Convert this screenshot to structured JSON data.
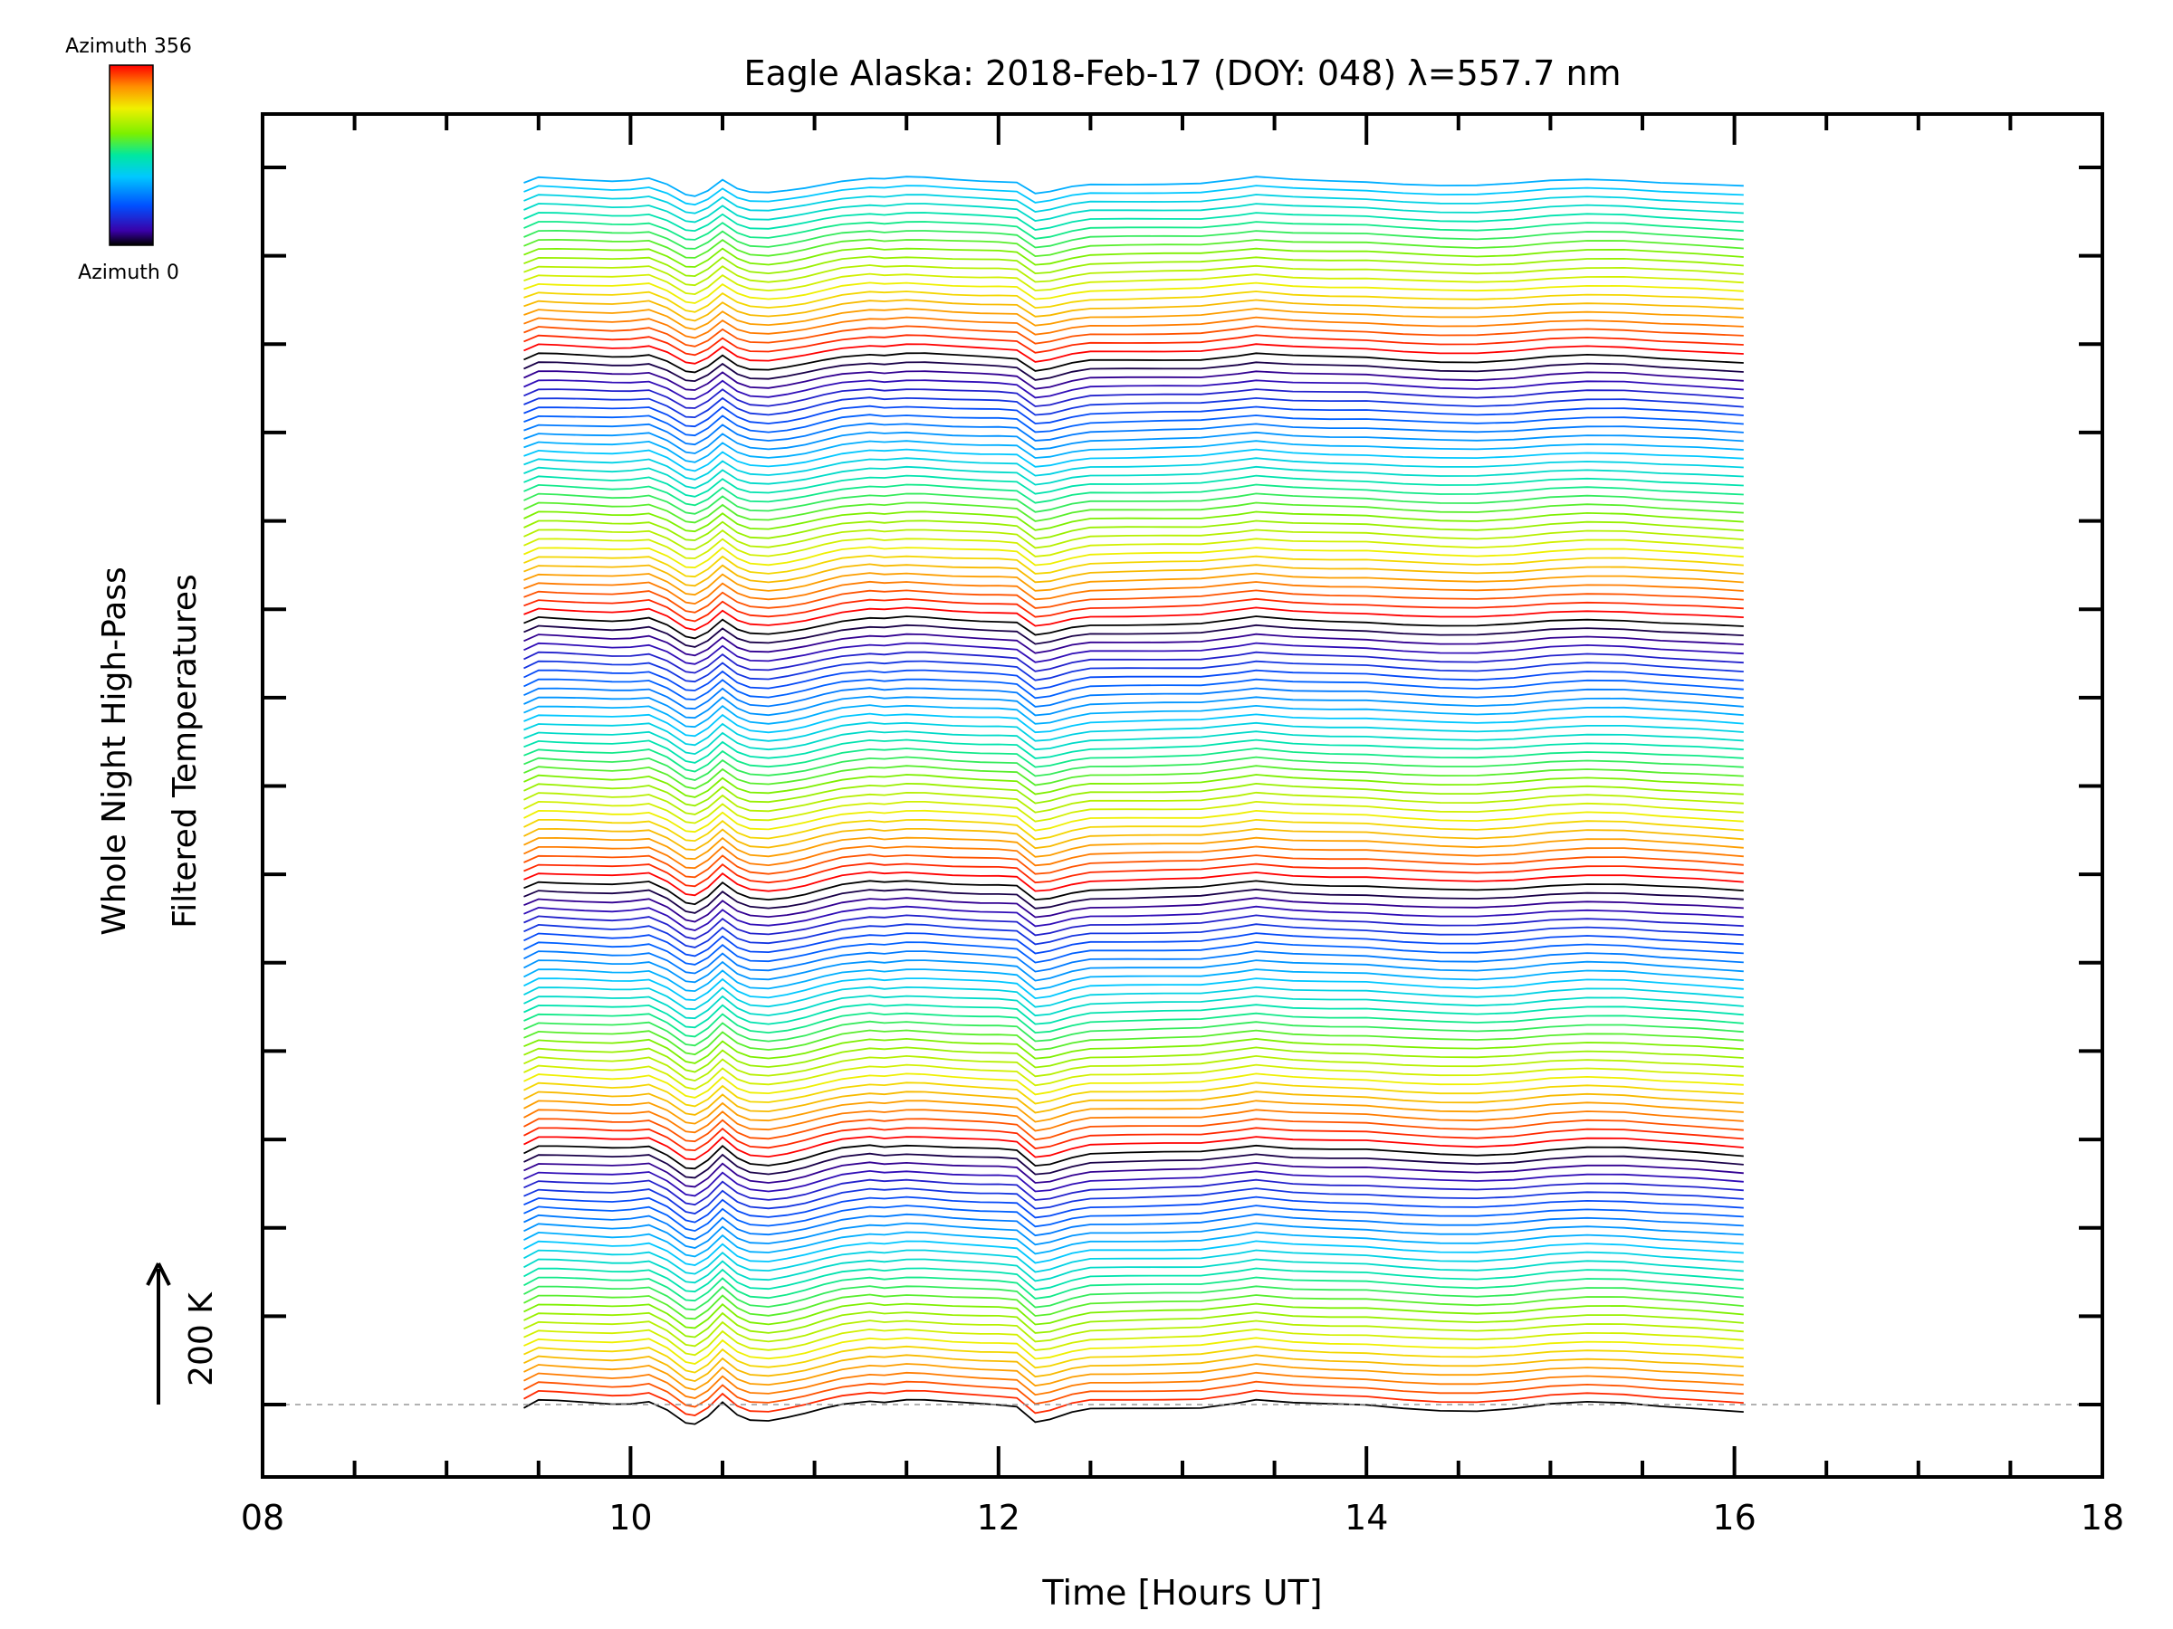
{
  "chart_data": {
    "type": "line",
    "title": "Eagle Alaska: 2018-Feb-17 (DOY: 048) λ=557.7 nm",
    "xlabel": "Time [Hours UT]",
    "ylabel_line1": "Whole Night High-Pass",
    "ylabel_line2": "Filtered Temperatures",
    "xlim": [
      8,
      18
    ],
    "x_ticks": [
      "08",
      "10",
      "12",
      "14",
      "16",
      "18"
    ],
    "x_tick_values": [
      8,
      10,
      12,
      14,
      16,
      18
    ],
    "y_scale_label": "200 K",
    "colorbar": {
      "top_label": "Azimuth 356",
      "bottom_label": "Azimuth 0",
      "colormap": "rainbow"
    },
    "series_count": 140,
    "azimuth_range": [
      0,
      356
    ],
    "azimuth_cycle_length": 30,
    "trace_time_start": 9.42,
    "trace_time_end": 16.05,
    "trace_time": [
      9.42,
      9.5,
      9.6,
      9.75,
      9.9,
      10.0,
      10.1,
      10.2,
      10.3,
      10.35,
      10.42,
      10.5,
      10.58,
      10.65,
      10.75,
      10.85,
      10.95,
      11.05,
      11.15,
      11.3,
      11.38,
      11.5,
      11.6,
      11.75,
      11.9,
      12.0,
      12.1,
      12.2,
      12.28,
      12.4,
      12.5,
      12.7,
      12.9,
      13.1,
      13.3,
      13.4,
      13.6,
      13.8,
      14.0,
      14.2,
      14.4,
      14.6,
      14.8,
      15.0,
      15.2,
      15.4,
      15.6,
      15.8,
      16.05
    ],
    "mean_temperature_anomaly_K": [
      -5,
      6,
      5,
      3,
      1,
      2,
      5,
      -8,
      -28,
      -30,
      -18,
      4,
      -14,
      -22,
      -24,
      -20,
      -14,
      -6,
      1,
      6,
      4,
      7,
      6,
      3,
      1,
      0,
      -2,
      -25,
      -22,
      -12,
      -7,
      -6,
      -5,
      -4,
      3,
      7,
      2,
      0,
      -1,
      -5,
      -8,
      -9,
      -6,
      0,
      3,
      2,
      -2,
      -5,
      -10
    ],
    "reference_line": "dashed gray baseline at lowest trace"
  }
}
